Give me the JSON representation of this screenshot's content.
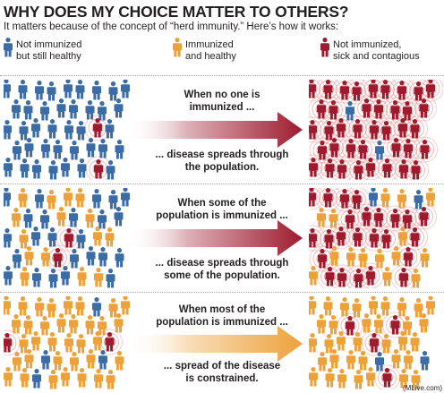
{
  "title": "WHY DOES MY CHOICE MATTER TO OTHERS?",
  "subtitle": "It matters because of the concept of “herd immunity.” Here’s how it works:",
  "colors": {
    "blue": "#3b6ca6",
    "orange": "#eda13a",
    "red": "#9e1b2f",
    "ring": "#e88a8a",
    "text": "#231f20",
    "divider": "#a7a9ac"
  },
  "legend": [
    {
      "label": "Not immunized\nbut still healthy",
      "color": "#3b6ca6",
      "icon": "person-icon"
    },
    {
      "label": "Immunized\nand healthy",
      "color": "#eda13a",
      "icon": "person-icon"
    },
    {
      "label": "Not immunized,\nsick and contagious",
      "color": "#9e1b2f",
      "icon": "person-icon"
    }
  ],
  "scenarios": [
    {
      "top_caption": "When no one is\nimmunized ...",
      "bottom_caption": "... disease spreads through\nthe population.",
      "arrow_color": "#9e1b2f",
      "before": {
        "blue": 39,
        "orange": 0,
        "red": 2
      },
      "after": {
        "blue": 2,
        "orange": 0,
        "red": 39
      }
    },
    {
      "top_caption": "When some of the\npopulation is immunized ...",
      "bottom_caption": "... disease spreads through\nsome of the population.",
      "arrow_color": "#9e1b2f",
      "before": {
        "blue": 24,
        "orange": 15,
        "red": 2
      },
      "after": {
        "blue": 2,
        "orange": 15,
        "red": 24
      }
    },
    {
      "top_caption": "When most of the\npopulation is immunized ...",
      "bottom_caption": "... spread of the disease\nis constrained.",
      "arrow_color": "#eda13a",
      "before": {
        "blue": 4,
        "orange": 35,
        "red": 2
      },
      "after": {
        "blue": 2,
        "orange": 35,
        "red": 4
      }
    }
  ],
  "credit": "(MLive.com)"
}
